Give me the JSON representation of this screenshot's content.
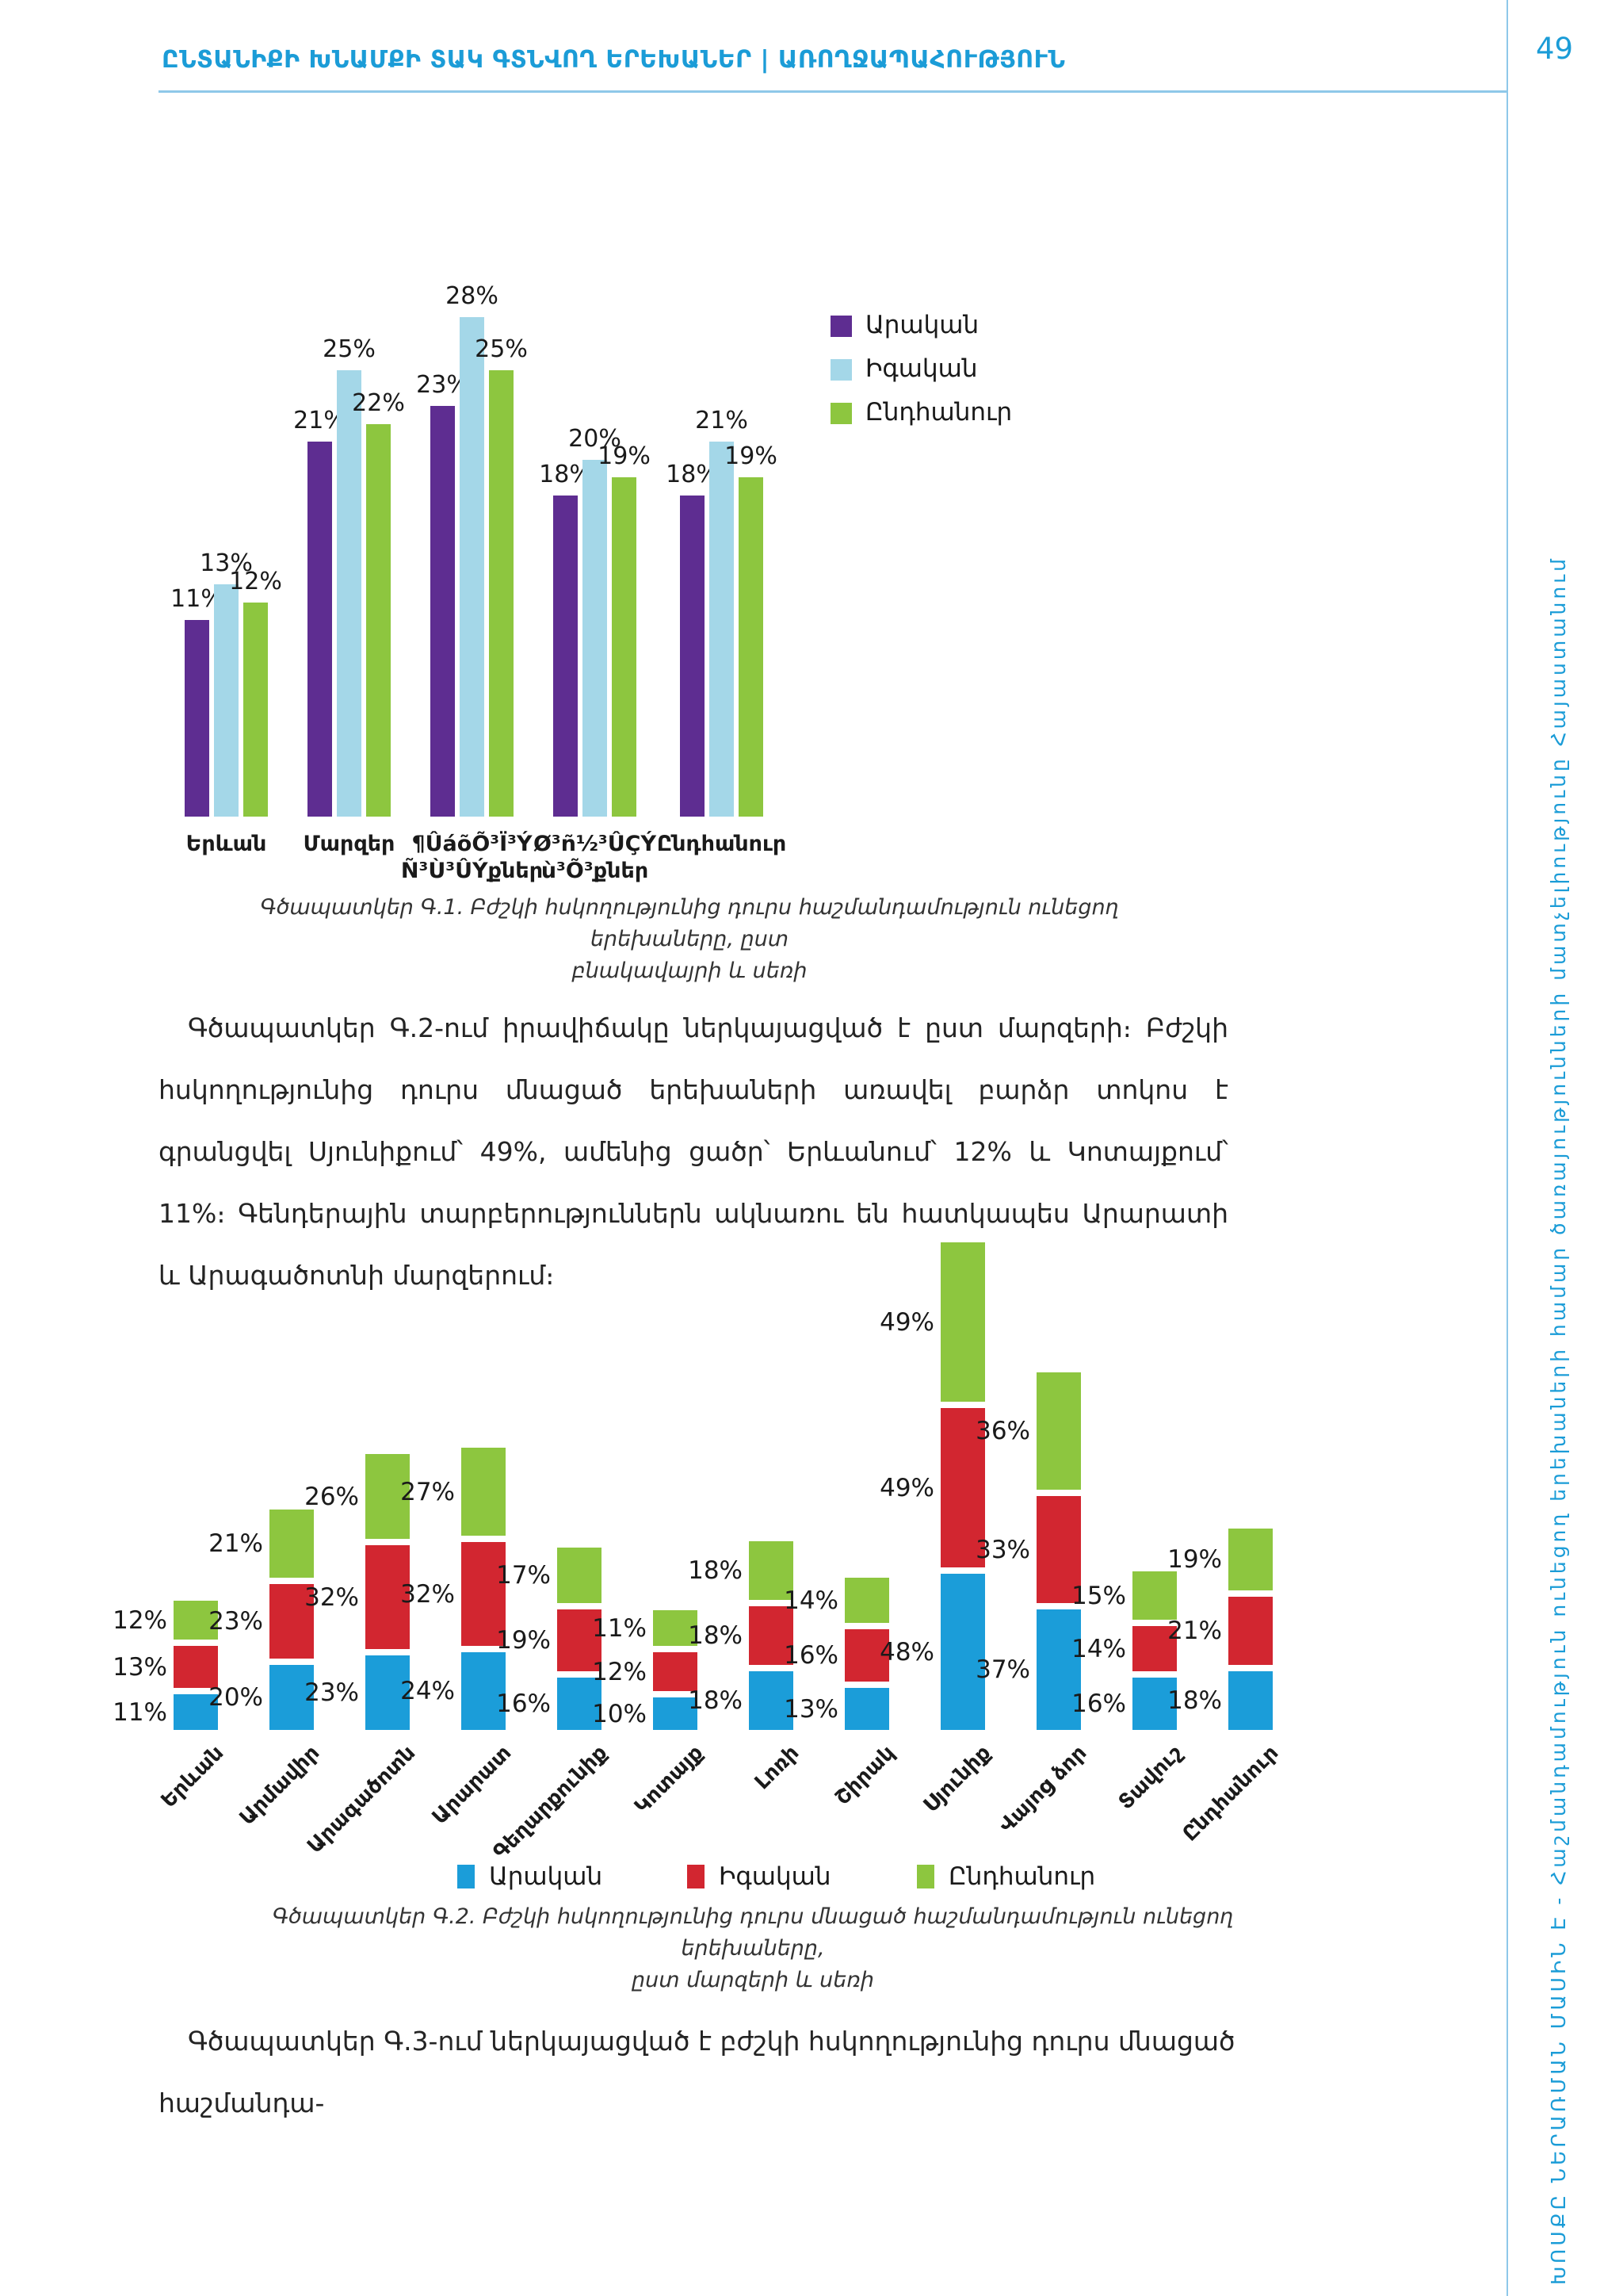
{
  "page": {
    "header": "ԸՆՏԱՆԻՔԻ ԽՆԱՄՔԻ ՏԱԿ ԳՏՆՎՈՂ ԵՐԵԽԱՆԵՐ | ԱՌՈՂՋԱՊԱՀՈՒԹՅՈՒՆ",
    "number": "49",
    "sidebar_text": "ԽՈՍՔԸ ՆԵՐԱՌՄԱՆ ՄԱՍԻՆ Է - Հաշմանդամություն ունեցող երեխաների համար ծառայությունների մատչելիությունը Հայաստանում"
  },
  "colors": {
    "accent_blue": "#1b9cd7",
    "rule_blue": "#8fc8e9",
    "text": "#242424"
  },
  "captions": {
    "chart1": "Գծապատկեր Գ.1. Բժշկի հսկողությունից դուրս հաշմանդամություն ունեցող երեխաները, ըստ\nբնակավայրի և սեռի",
    "chart2": "Գծապատկեր Գ.2. Բժշկի հսկողությունից դուրս մնացած հաշմանդամություն ունեցող երեխաները,\nըստ մարզերի և սեռի"
  },
  "paragraphs": {
    "p1": "Գծապատկեր Գ.2-ում իրավիճակը ներկայացված է ըստ մարզերի։ Բժշկի հսկողությունից դուրս մնացած երեխաների առավել բարձր տոկոս է գրանցվել Սյունիքում՝ 49%, ամենից ցածր՝ Երևանում՝ 12% և Կոտայքում՝ 11%։ Գենդերային տարբերություններն ակնառու են հատկապես Արարատի և Արագածոտնի մարզերում։",
    "p2": "Գծապատկեր Գ.3-ում ներկայացված է բժշկի հսկողությունից դուրս մնացած հաշմանդա-"
  },
  "chart_data": [
    {
      "type": "bar",
      "title": "",
      "unit": "%",
      "categories": [
        "Երևան",
        "Մարզեր",
        "¶ÛáõÕ³Ï³Ý\nÑ³Ù³ÛÝքներ",
        "Ø³ñ½³ÛÇÝ\nù³Õ³քներ",
        "Ընդհանուր"
      ],
      "series": [
        {
          "name": "Արական",
          "color": "#5e2d91",
          "values": [
            11,
            21,
            23,
            18,
            18
          ]
        },
        {
          "name": "Իգական",
          "color": "#a4d7e8",
          "values": [
            13,
            25,
            28,
            20,
            21
          ]
        },
        {
          "name": "Ընդհանուր",
          "color": "#8dc63f",
          "values": [
            12,
            22,
            25,
            19,
            19
          ]
        }
      ],
      "ylim": [
        0,
        30
      ],
      "grid": false,
      "legend_position": "right",
      "data_labels": true
    },
    {
      "type": "bar",
      "subtype": "stacked-with-gaps",
      "title": "",
      "unit": "%",
      "categories": [
        "Երևան",
        "Արմավիր",
        "Արագածոտն",
        "Արարատ",
        "Գեղարքունիք",
        "Կոտայք",
        "Լոռի",
        "Շիրակ",
        "Սյունիք",
        "Վայոց ձոր",
        "Տավուշ",
        "Ընդհանուր"
      ],
      "series": [
        {
          "name": "Արական",
          "color": "#1b9dd9",
          "values": [
            11,
            20,
            23,
            24,
            16,
            10,
            18,
            13,
            48,
            37,
            16,
            18
          ]
        },
        {
          "name": "Իգական",
          "color": "#d22630",
          "values": [
            13,
            23,
            32,
            32,
            19,
            12,
            18,
            16,
            49,
            33,
            14,
            21
          ]
        },
        {
          "name": "Ընդհանուր",
          "color": "#8dc63f",
          "values": [
            12,
            21,
            26,
            27,
            17,
            11,
            18,
            14,
            49,
            36,
            15,
            19
          ]
        }
      ],
      "grid": false,
      "legend_position": "bottom",
      "data_labels": true
    }
  ]
}
